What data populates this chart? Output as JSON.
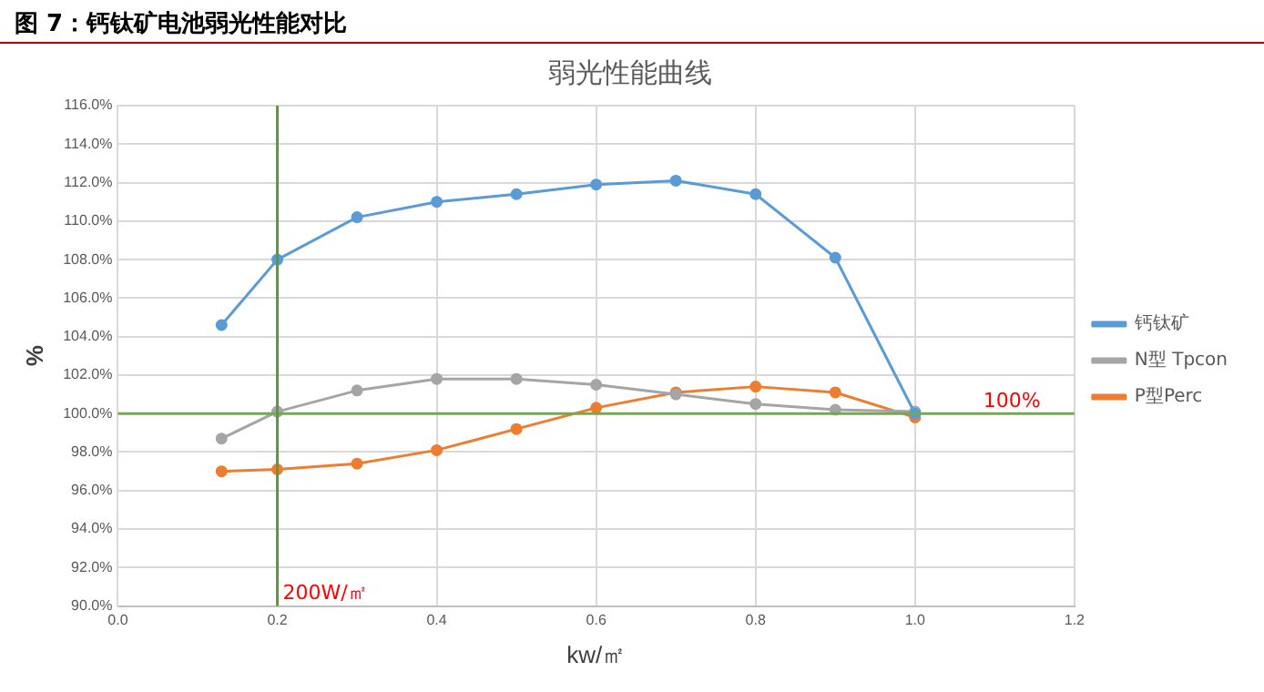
{
  "chart_data": {
    "type": "line",
    "title": "图 7：钙钛矿电池弱光性能对比",
    "subtitle": "弱光性能曲线",
    "xlabel": "kw/㎡",
    "ylabel": "%",
    "x": [
      0.13,
      0.2,
      0.3,
      0.4,
      0.5,
      0.6,
      0.7,
      0.8,
      0.9,
      1.0
    ],
    "series": [
      {
        "name": "钙钛矿",
        "color": "#5b9bd5",
        "values": [
          104.6,
          108.0,
          110.2,
          111.0,
          111.4,
          111.9,
          112.1,
          111.4,
          108.1,
          100.0
        ]
      },
      {
        "name": "N型 Tpcon",
        "color": "#a5a5a5",
        "values": [
          98.7,
          100.1,
          101.2,
          101.8,
          101.8,
          101.5,
          101.0,
          100.5,
          100.2,
          100.1
        ]
      },
      {
        "name": "P型Perc",
        "color": "#ed7d31",
        "values": [
          97.0,
          97.1,
          97.4,
          98.1,
          99.2,
          100.3,
          101.1,
          101.4,
          101.1,
          99.8
        ]
      }
    ],
    "xlim": [
      0,
      1.2
    ],
    "xticks": [
      {
        "value": 0,
        "label": "0.0"
      },
      {
        "value": 0.2,
        "label": "0.2"
      },
      {
        "value": 0.4,
        "label": "0.4"
      },
      {
        "value": 0.6,
        "label": "0.6"
      },
      {
        "value": 0.8,
        "label": "0.8"
      },
      {
        "value": 1.0,
        "label": "1.0"
      },
      {
        "value": 1.2,
        "label": "1.2"
      }
    ],
    "ylim": [
      90,
      116
    ],
    "yticks": [
      {
        "value": 90,
        "label": "90.0%"
      },
      {
        "value": 92,
        "label": "92.0%"
      },
      {
        "value": 94,
        "label": "94.0%"
      },
      {
        "value": 96,
        "label": "96.0%"
      },
      {
        "value": 98,
        "label": "98.0%"
      },
      {
        "value": 100,
        "label": "100.0%"
      },
      {
        "value": 102,
        "label": "102.0%"
      },
      {
        "value": 104,
        "label": "104.0%"
      },
      {
        "value": 106,
        "label": "106.0%"
      },
      {
        "value": 108,
        "label": "108.0%"
      },
      {
        "value": 110,
        "label": "110.0%"
      },
      {
        "value": 112,
        "label": "112.0%"
      },
      {
        "value": 114,
        "label": "114.0%"
      },
      {
        "value": 116,
        "label": "116.0%"
      }
    ],
    "ref_lines": [
      {
        "axis": "y",
        "value": 100,
        "label": "100%",
        "color": "#70ad47"
      },
      {
        "axis": "x",
        "value": 0.2,
        "label": "200W/㎡",
        "color": "#5a9a3a"
      }
    ],
    "grid": true,
    "legend": "right",
    "marker": "circle",
    "line_style": "solid"
  }
}
